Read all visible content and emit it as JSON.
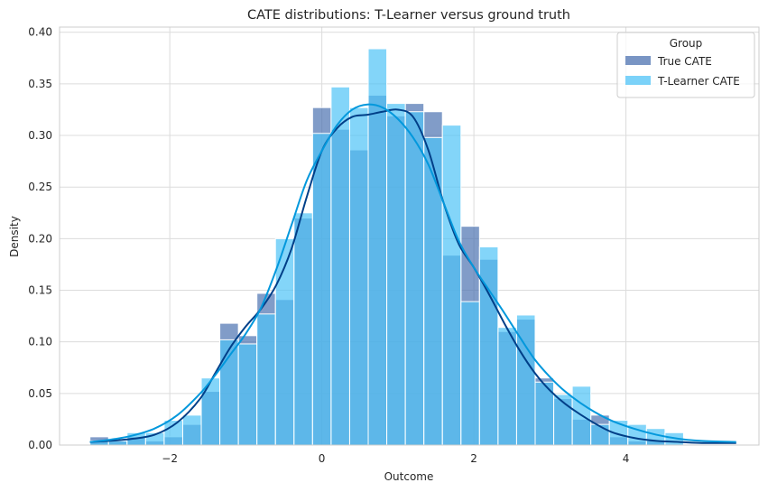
{
  "chart_data": {
    "type": "histogram",
    "title": "CATE distributions: T-Learner versus ground truth",
    "xlabel": "Outcome",
    "ylabel": "Density",
    "xlim": [
      -3.45,
      5.75
    ],
    "ylim": [
      0,
      0.405
    ],
    "xticks": [
      -2,
      0,
      2,
      4
    ],
    "xtick_labels": [
      "−2",
      "0",
      "2",
      "4"
    ],
    "yticks": [
      0.0,
      0.05,
      0.1,
      0.15,
      0.2,
      0.25,
      0.3,
      0.35,
      0.4
    ],
    "ytick_labels": [
      "0.00",
      "0.05",
      "0.10",
      "0.15",
      "0.20",
      "0.25",
      "0.30",
      "0.35",
      "0.40"
    ],
    "grid": true,
    "legend": {
      "title": "Group",
      "placement": "top-right"
    },
    "bin_edges": [
      -3.05,
      -2.806,
      -2.562,
      -2.318,
      -2.074,
      -1.83,
      -1.586,
      -1.342,
      -1.098,
      -0.854,
      -0.61,
      -0.366,
      -0.122,
      0.122,
      0.366,
      0.61,
      0.854,
      1.098,
      1.342,
      1.586,
      1.83,
      2.074,
      2.318,
      2.562,
      2.806,
      3.05,
      3.294,
      3.538,
      3.782,
      4.026,
      4.27,
      4.514,
      4.758
    ],
    "series": [
      {
        "name": "True CATE",
        "color": "#4c72b0",
        "values": [
          0.008,
          0.004,
          0.008,
          0.004,
          0.008,
          0.02,
          0.052,
          0.118,
          0.106,
          0.147,
          0.141,
          0.22,
          0.327,
          0.306,
          0.286,
          0.339,
          0.319,
          0.331,
          0.323,
          0.184,
          0.212,
          0.18,
          0.11,
          0.122,
          0.065,
          0.045,
          0.025,
          0.029,
          0.008,
          0.004,
          0.004,
          0.0
        ],
        "kde_x": [
          -3.05,
          -2.8,
          -2.5,
          -2.2,
          -1.9,
          -1.6,
          -1.4,
          -1.2,
          -1.0,
          -0.8,
          -0.6,
          -0.4,
          -0.2,
          0.0,
          0.2,
          0.4,
          0.6,
          0.8,
          1.0,
          1.2,
          1.4,
          1.6,
          1.8,
          2.0,
          2.2,
          2.4,
          2.6,
          2.8,
          3.0,
          3.2,
          3.5,
          3.8,
          4.1,
          4.4,
          4.7,
          5.0,
          5.45
        ],
        "kde_y": [
          0.003,
          0.004,
          0.006,
          0.01,
          0.022,
          0.045,
          0.07,
          0.095,
          0.115,
          0.132,
          0.155,
          0.19,
          0.24,
          0.285,
          0.307,
          0.318,
          0.32,
          0.323,
          0.325,
          0.318,
          0.286,
          0.235,
          0.195,
          0.172,
          0.146,
          0.118,
          0.092,
          0.07,
          0.053,
          0.04,
          0.025,
          0.013,
          0.007,
          0.004,
          0.003,
          0.002,
          0.002
        ]
      },
      {
        "name": "T-Learner CATE",
        "color": "#4fc3f7",
        "values": [
          0.004,
          0.004,
          0.012,
          0.012,
          0.024,
          0.029,
          0.065,
          0.102,
          0.098,
          0.127,
          0.2,
          0.225,
          0.302,
          0.347,
          0.327,
          0.384,
          0.331,
          0.323,
          0.298,
          0.31,
          0.139,
          0.192,
          0.114,
          0.126,
          0.061,
          0.049,
          0.057,
          0.02,
          0.024,
          0.02,
          0.016,
          0.012
        ],
        "kde_x": [
          -3.05,
          -2.8,
          -2.5,
          -2.2,
          -1.9,
          -1.6,
          -1.4,
          -1.2,
          -1.0,
          -0.8,
          -0.6,
          -0.4,
          -0.2,
          0.0,
          0.2,
          0.4,
          0.6,
          0.8,
          1.0,
          1.2,
          1.4,
          1.6,
          1.8,
          2.0,
          2.2,
          2.4,
          2.6,
          2.8,
          3.0,
          3.2,
          3.5,
          3.8,
          4.1,
          4.4,
          4.7,
          5.0,
          5.45
        ],
        "kde_y": [
          0.003,
          0.005,
          0.009,
          0.016,
          0.029,
          0.05,
          0.068,
          0.088,
          0.108,
          0.133,
          0.17,
          0.213,
          0.256,
          0.285,
          0.31,
          0.325,
          0.33,
          0.327,
          0.316,
          0.298,
          0.272,
          0.235,
          0.198,
          0.172,
          0.15,
          0.128,
          0.105,
          0.083,
          0.066,
          0.052,
          0.036,
          0.024,
          0.016,
          0.01,
          0.006,
          0.004,
          0.003
        ]
      }
    ],
    "kde_colors": [
      "#003f88",
      "#0398dc"
    ]
  }
}
